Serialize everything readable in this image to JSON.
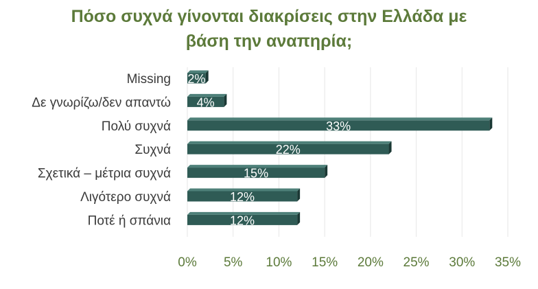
{
  "chart_data": {
    "type": "bar",
    "orientation": "horizontal",
    "title_lines": [
      "Πόσο συχνά γίνονται διακρίσεις στην Ελλάδα με",
      "βάση την αναπηρία;"
    ],
    "categories": [
      "Missing",
      "Δε γνωρίζω/δεν απαντώ",
      "Πολύ συχνά",
      "Συχνά",
      "Σχετικά – μέτρια συχνά",
      "Λιγότερο συχνά",
      "Ποτέ ή σπάνια"
    ],
    "values": [
      2,
      4,
      33,
      22,
      15,
      12,
      12
    ],
    "data_labels": [
      "2%",
      "4%",
      "33%",
      "22%",
      "15%",
      "12%",
      "12%"
    ],
    "x_ticks": [
      0,
      5,
      10,
      15,
      20,
      25,
      30,
      35
    ],
    "x_tick_labels": [
      "0%",
      "5%",
      "10%",
      "15%",
      "20%",
      "25%",
      "30%",
      "35%"
    ],
    "xlim": [
      0,
      35
    ],
    "grid": true,
    "legend": "none",
    "colors": {
      "bar": "#2f5b55",
      "bar_top": "#4e8079",
      "bar_side": "#1a3834",
      "title": "#5c7a3a",
      "tick_label": "#5c7a3a",
      "category_label": "#3a3a3a",
      "data_label": "#ffffff",
      "grid": "#e6e6e6"
    }
  }
}
